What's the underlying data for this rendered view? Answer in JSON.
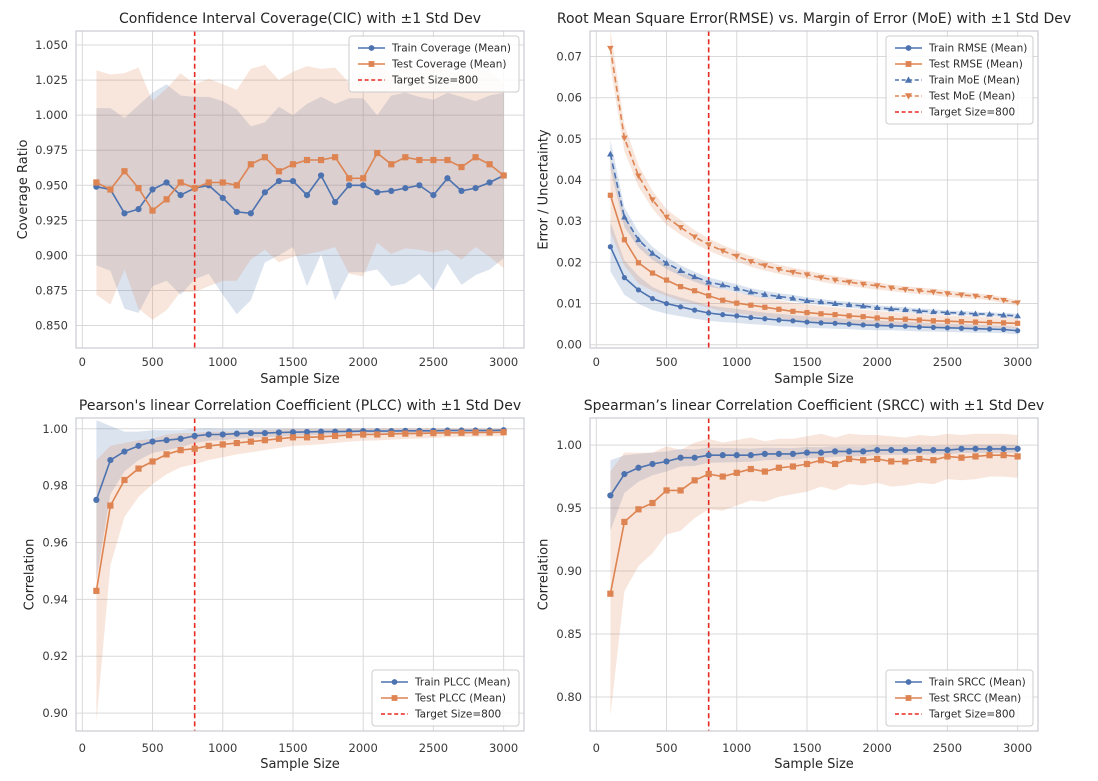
{
  "figure": {
    "background": "#ffffff",
    "grid_color": "#d9d9d9",
    "spine_color": "#c7ccd1",
    "train_color": "#4C72B0",
    "test_color": "#DD8452",
    "target_color": "#e8291f"
  },
  "chart_data": [
    {
      "id": "cic",
      "type": "line",
      "title": "Confidence Interval Coverage(CIC) with ±1 Std Dev",
      "xlabel": "Sample Size",
      "ylabel": "Coverage Ratio",
      "xlim": [
        -45,
        3145
      ],
      "ylim": [
        0.834,
        1.06
      ],
      "xticks": [
        0,
        500,
        1000,
        1500,
        2000,
        2500,
        3000
      ],
      "xtick_labels": [
        "0",
        "500",
        "1000",
        "1500",
        "2000",
        "2500",
        "3000"
      ],
      "yticks": [
        0.85,
        0.875,
        0.9,
        0.925,
        0.95,
        0.975,
        1.0,
        1.025,
        1.05
      ],
      "ytick_labels": [
        "0.850",
        "0.875",
        "0.900",
        "0.925",
        "0.950",
        "0.975",
        "1.000",
        "1.025",
        "1.050"
      ],
      "grid": true,
      "legend_loc": "upper right",
      "x": [
        100,
        200,
        300,
        400,
        500,
        600,
        700,
        800,
        900,
        1000,
        1100,
        1200,
        1300,
        1400,
        1500,
        1600,
        1700,
        1800,
        1900,
        2000,
        2100,
        2200,
        2300,
        2400,
        2500,
        2600,
        2700,
        2800,
        2900,
        3000
      ],
      "target_line": {
        "x": 800,
        "label": "Target Size=800",
        "color": "#e8291f",
        "style": "dashed"
      },
      "series": [
        {
          "name": "Train Coverage (Mean)",
          "color": "#4C72B0",
          "marker": "circle",
          "line": "solid",
          "values": [
            0.949,
            0.947,
            0.93,
            0.933,
            0.947,
            0.952,
            0.943,
            0.948,
            0.95,
            0.941,
            0.931,
            0.93,
            0.945,
            0.953,
            0.953,
            0.943,
            0.957,
            0.938,
            0.95,
            0.95,
            0.945,
            0.946,
            0.948,
            0.95,
            0.943,
            0.955,
            0.946,
            0.948,
            0.952,
            0.957
          ],
          "std": [
            0.056,
            0.058,
            0.068,
            0.074,
            0.069,
            0.07,
            0.071,
            0.065,
            0.063,
            0.069,
            0.073,
            0.062,
            0.05,
            0.053,
            0.047,
            0.065,
            0.056,
            0.07,
            0.062,
            0.062,
            0.055,
            0.068,
            0.068,
            0.063,
            0.068,
            0.061,
            0.067,
            0.062,
            0.062,
            0.059
          ]
        },
        {
          "name": "Test Coverage (Mean)",
          "color": "#DD8452",
          "marker": "square",
          "line": "solid",
          "values": [
            0.952,
            0.947,
            0.96,
            0.948,
            0.932,
            0.94,
            0.952,
            0.948,
            0.952,
            0.952,
            0.95,
            0.965,
            0.97,
            0.96,
            0.965,
            0.968,
            0.968,
            0.97,
            0.955,
            0.955,
            0.973,
            0.965,
            0.97,
            0.968,
            0.968,
            0.968,
            0.963,
            0.97,
            0.965,
            0.957
          ],
          "std": [
            0.08,
            0.082,
            0.07,
            0.086,
            0.078,
            0.079,
            0.078,
            0.074,
            0.074,
            0.07,
            0.068,
            0.068,
            0.066,
            0.065,
            0.066,
            0.067,
            0.065,
            0.064,
            0.068,
            0.07,
            0.064,
            0.064,
            0.065,
            0.064,
            0.066,
            0.064,
            0.066,
            0.064,
            0.066,
            0.066
          ]
        }
      ]
    },
    {
      "id": "rmse",
      "type": "line",
      "title": "Root Mean Square Error(RMSE) vs. Margin of Error (MoE) with ±1 Std Dev",
      "xlabel": "Sample Size",
      "ylabel": "Error / Uncertainty",
      "xlim": [
        -45,
        3145
      ],
      "ylim": [
        -0.0008,
        0.0762
      ],
      "xticks": [
        0,
        500,
        1000,
        1500,
        2000,
        2500,
        3000
      ],
      "xtick_labels": [
        "0",
        "500",
        "1000",
        "1500",
        "2000",
        "2500",
        "3000"
      ],
      "yticks": [
        0.0,
        0.01,
        0.02,
        0.03,
        0.04,
        0.05,
        0.06,
        0.07
      ],
      "ytick_labels": [
        "0.00",
        "0.01",
        "0.02",
        "0.03",
        "0.04",
        "0.05",
        "0.06",
        "0.07"
      ],
      "grid": true,
      "legend_loc": "upper right",
      "x": [
        100,
        200,
        300,
        400,
        500,
        600,
        700,
        800,
        900,
        1000,
        1100,
        1200,
        1300,
        1400,
        1500,
        1600,
        1700,
        1800,
        1900,
        2000,
        2100,
        2200,
        2300,
        2400,
        2500,
        2600,
        2700,
        2800,
        2900,
        3000
      ],
      "target_line": {
        "x": 800,
        "label": "Target Size=800",
        "color": "#e8291f",
        "style": "dashed"
      },
      "series": [
        {
          "name": "Train RMSE (Mean)",
          "color": "#4C72B0",
          "marker": "circle",
          "line": "solid",
          "values": [
            0.0238,
            0.0163,
            0.0133,
            0.0112,
            0.01,
            0.0092,
            0.0084,
            0.0077,
            0.0073,
            0.007,
            0.0066,
            0.0063,
            0.006,
            0.0058,
            0.0055,
            0.0053,
            0.0052,
            0.005,
            0.0048,
            0.0047,
            0.0046,
            0.0045,
            0.0043,
            0.0042,
            0.0041,
            0.004,
            0.0039,
            0.0038,
            0.0037,
            0.0034
          ],
          "std": [
            0.006,
            0.0042,
            0.0034,
            0.0028,
            0.0025,
            0.0023,
            0.0021,
            0.0019,
            0.0018,
            0.0017,
            0.0016,
            0.0015,
            0.0015,
            0.0014,
            0.0014,
            0.0013,
            0.0013,
            0.0012,
            0.0012,
            0.0012,
            0.0011,
            0.0011,
            0.0011,
            0.001,
            0.001,
            0.001,
            0.001,
            0.0009,
            0.0009,
            0.0009
          ]
        },
        {
          "name": "Test RMSE (Mean)",
          "color": "#DD8452",
          "marker": "square",
          "line": "solid",
          "values": [
            0.0363,
            0.0255,
            0.0199,
            0.0174,
            0.0157,
            0.0141,
            0.0131,
            0.0119,
            0.0108,
            0.0101,
            0.0096,
            0.0091,
            0.0086,
            0.0081,
            0.0078,
            0.0075,
            0.0073,
            0.007,
            0.0068,
            0.0065,
            0.0063,
            0.0062,
            0.006,
            0.0058,
            0.0057,
            0.0056,
            0.0055,
            0.0054,
            0.0053,
            0.0052
          ],
          "std": [
            0.009,
            0.0063,
            0.005,
            0.0043,
            0.0038,
            0.0035,
            0.0032,
            0.0029,
            0.0027,
            0.0025,
            0.0024,
            0.0023,
            0.0022,
            0.0021,
            0.002,
            0.0019,
            0.0018,
            0.0018,
            0.0017,
            0.0017,
            0.0016,
            0.0016,
            0.0015,
            0.0015,
            0.0014,
            0.0014,
            0.0014,
            0.0013,
            0.0013,
            0.0013
          ]
        },
        {
          "name": "Train MoE (Mean)",
          "color": "#4C72B0",
          "marker": "triangle_up",
          "line": "dashed",
          "values": [
            0.0463,
            0.031,
            0.0255,
            0.0222,
            0.0198,
            0.018,
            0.0165,
            0.0152,
            0.0145,
            0.0137,
            0.0128,
            0.0122,
            0.0117,
            0.0113,
            0.0107,
            0.0104,
            0.01,
            0.0097,
            0.0094,
            0.009,
            0.0087,
            0.0085,
            0.0082,
            0.008,
            0.0078,
            0.0077,
            0.0075,
            0.0074,
            0.0072,
            0.007
          ],
          "std": [
            0.0035,
            0.0024,
            0.0019,
            0.0016,
            0.0014,
            0.0013,
            0.0012,
            0.0011,
            0.001,
            0.001,
            0.0009,
            0.0009,
            0.0008,
            0.0008,
            0.0008,
            0.0007,
            0.0007,
            0.0007,
            0.0007,
            0.0006,
            0.0006,
            0.0006,
            0.0006,
            0.0006,
            0.0005,
            0.0005,
            0.0005,
            0.0005,
            0.0005,
            0.0005
          ]
        },
        {
          "name": "Test MoE (Mean)",
          "color": "#DD8452",
          "marker": "triangle_down",
          "line": "dashed",
          "values": [
            0.072,
            0.0502,
            0.041,
            0.0352,
            0.031,
            0.0285,
            0.0262,
            0.0243,
            0.0228,
            0.0215,
            0.0202,
            0.0192,
            0.0183,
            0.0176,
            0.017,
            0.0163,
            0.0157,
            0.0152,
            0.0147,
            0.0143,
            0.0138,
            0.0134,
            0.0131,
            0.0128,
            0.0124,
            0.0121,
            0.0118,
            0.0115,
            0.0108,
            0.0102
          ],
          "std": [
            0.0045,
            0.0032,
            0.0026,
            0.0022,
            0.0019,
            0.0018,
            0.0016,
            0.0015,
            0.0014,
            0.0013,
            0.0013,
            0.0012,
            0.0011,
            0.0011,
            0.001,
            0.001,
            0.001,
            0.0009,
            0.0009,
            0.0009,
            0.0008,
            0.0008,
            0.0008,
            0.0008,
            0.0008,
            0.0007,
            0.0007,
            0.0007,
            0.0007,
            0.0006
          ]
        }
      ]
    },
    {
      "id": "plcc",
      "type": "line",
      "title": "Pearson's linear Correlation Coefficient (PLCC) with ±1 Std Dev",
      "xlabel": "Sample Size",
      "ylabel": "Correlation",
      "xlim": [
        -45,
        3145
      ],
      "ylim": [
        0.8937,
        1.0038
      ],
      "xticks": [
        0,
        500,
        1000,
        1500,
        2000,
        2500,
        3000
      ],
      "xtick_labels": [
        "0",
        "500",
        "1000",
        "1500",
        "2000",
        "2500",
        "3000"
      ],
      "yticks": [
        0.9,
        0.92,
        0.94,
        0.96,
        0.98,
        1.0
      ],
      "ytick_labels": [
        "0.90",
        "0.92",
        "0.94",
        "0.96",
        "0.98",
        "1.00"
      ],
      "grid": true,
      "legend_loc": "lower right",
      "x": [
        100,
        200,
        300,
        400,
        500,
        600,
        700,
        800,
        900,
        1000,
        1100,
        1200,
        1300,
        1400,
        1500,
        1600,
        1700,
        1800,
        1900,
        2000,
        2100,
        2200,
        2300,
        2400,
        2500,
        2600,
        2700,
        2800,
        2900,
        3000
      ],
      "target_line": {
        "x": 800,
        "label": "Target Size=800",
        "color": "#e8291f",
        "style": "dashed"
      },
      "series": [
        {
          "name": "Train PLCC (Mean)",
          "color": "#4C72B0",
          "marker": "circle",
          "line": "solid",
          "values": [
            0.975,
            0.989,
            0.992,
            0.994,
            0.9955,
            0.996,
            0.9965,
            0.9975,
            0.998,
            0.998,
            0.9983,
            0.9985,
            0.9985,
            0.9987,
            0.9988,
            0.9989,
            0.999,
            0.999,
            0.9991,
            0.9992,
            0.9992,
            0.9992,
            0.9993,
            0.9993,
            0.9993,
            0.9994,
            0.9994,
            0.9994,
            0.9994,
            0.9995
          ],
          "std": [
            0.028,
            0.012,
            0.007,
            0.005,
            0.004,
            0.0035,
            0.003,
            0.0025,
            0.0022,
            0.002,
            0.0018,
            0.0016,
            0.0015,
            0.0014,
            0.0013,
            0.0012,
            0.0011,
            0.001,
            0.001,
            0.0009,
            0.0009,
            0.0008,
            0.0008,
            0.0007,
            0.0007,
            0.0007,
            0.0006,
            0.0006,
            0.0006,
            0.0005
          ]
        },
        {
          "name": "Test PLCC (Mean)",
          "color": "#DD8452",
          "marker": "square",
          "line": "solid",
          "values": [
            0.943,
            0.973,
            0.982,
            0.986,
            0.9885,
            0.991,
            0.9925,
            0.993,
            0.994,
            0.9945,
            0.995,
            0.9955,
            0.996,
            0.9965,
            0.997,
            0.997,
            0.9972,
            0.9975,
            0.9978,
            0.998,
            0.998,
            0.9982,
            0.9983,
            0.9984,
            0.9985,
            0.9986,
            0.9986,
            0.9987,
            0.9987,
            0.9988
          ],
          "std": [
            0.046,
            0.021,
            0.013,
            0.01,
            0.008,
            0.007,
            0.006,
            0.0055,
            0.005,
            0.0045,
            0.004,
            0.0038,
            0.0035,
            0.0032,
            0.003,
            0.0028,
            0.0026,
            0.0025,
            0.0023,
            0.0022,
            0.0021,
            0.002,
            0.0019,
            0.0018,
            0.0017,
            0.0016,
            0.0015,
            0.0015,
            0.0014,
            0.0014
          ]
        }
      ]
    },
    {
      "id": "srcc",
      "type": "line",
      "title": "Spearman’s linear Correlation Coefficient (SRCC) with ±1 Std Dev",
      "xlabel": "Sample Size",
      "ylabel": "Correlation",
      "xlim": [
        -45,
        3145
      ],
      "ylim": [
        0.773,
        1.0215
      ],
      "xticks": [
        0,
        500,
        1000,
        1500,
        2000,
        2500,
        3000
      ],
      "xtick_labels": [
        "0",
        "500",
        "1000",
        "1500",
        "2000",
        "2500",
        "3000"
      ],
      "yticks": [
        0.8,
        0.85,
        0.9,
        0.95,
        1.0
      ],
      "ytick_labels": [
        "0.80",
        "0.85",
        "0.90",
        "0.95",
        "1.00"
      ],
      "grid": true,
      "legend_loc": "lower right",
      "x": [
        100,
        200,
        300,
        400,
        500,
        600,
        700,
        800,
        900,
        1000,
        1100,
        1200,
        1300,
        1400,
        1500,
        1600,
        1700,
        1800,
        1900,
        2000,
        2100,
        2200,
        2300,
        2400,
        2500,
        2600,
        2700,
        2800,
        2900,
        3000
      ],
      "target_line": {
        "x": 800,
        "label": "Target Size=800",
        "color": "#e8291f",
        "style": "dashed"
      },
      "series": [
        {
          "name": "Train SRCC (Mean)",
          "color": "#4C72B0",
          "marker": "circle",
          "line": "solid",
          "values": [
            0.96,
            0.977,
            0.982,
            0.985,
            0.987,
            0.99,
            0.99,
            0.992,
            0.992,
            0.992,
            0.992,
            0.993,
            0.993,
            0.993,
            0.994,
            0.994,
            0.995,
            0.995,
            0.995,
            0.996,
            0.996,
            0.996,
            0.996,
            0.996,
            0.996,
            0.997,
            0.997,
            0.997,
            0.997,
            0.997
          ],
          "std": [
            0.028,
            0.015,
            0.011,
            0.009,
            0.008,
            0.007,
            0.0065,
            0.006,
            0.0058,
            0.0055,
            0.0052,
            0.005,
            0.0048,
            0.0046,
            0.0045,
            0.0043,
            0.0042,
            0.004,
            0.0039,
            0.0038,
            0.0037,
            0.0036,
            0.0035,
            0.0035,
            0.0034,
            0.0033,
            0.0033,
            0.0032,
            0.0032,
            0.0031
          ]
        },
        {
          "name": "Test SRCC (Mean)",
          "color": "#DD8452",
          "marker": "square",
          "line": "solid",
          "values": [
            0.882,
            0.939,
            0.949,
            0.954,
            0.964,
            0.964,
            0.972,
            0.977,
            0.975,
            0.978,
            0.981,
            0.979,
            0.982,
            0.983,
            0.985,
            0.988,
            0.985,
            0.989,
            0.988,
            0.989,
            0.987,
            0.987,
            0.989,
            0.988,
            0.991,
            0.99,
            0.991,
            0.992,
            0.992,
            0.991
          ],
          "std": [
            0.097,
            0.055,
            0.045,
            0.04,
            0.035,
            0.032,
            0.03,
            0.028,
            0.027,
            0.026,
            0.025,
            0.024,
            0.023,
            0.022,
            0.022,
            0.021,
            0.021,
            0.02,
            0.02,
            0.019,
            0.02,
            0.019,
            0.019,
            0.019,
            0.018,
            0.018,
            0.018,
            0.017,
            0.017,
            0.017
          ]
        }
      ]
    }
  ]
}
